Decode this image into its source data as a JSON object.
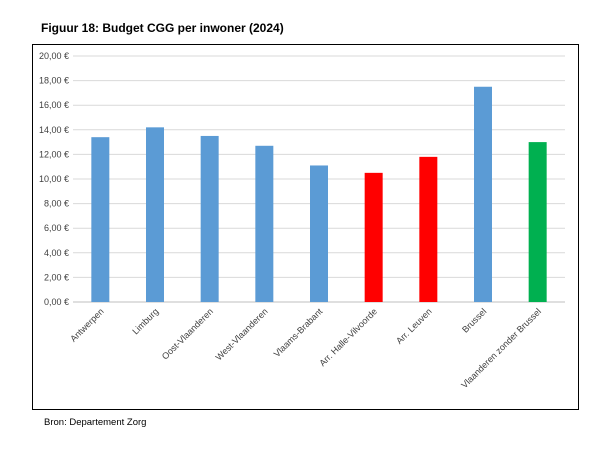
{
  "title": "Figuur 18: Budget CGG per inwoner (2024)",
  "source": "Bron: Departement Zorg",
  "chart_data": {
    "type": "bar",
    "title": "Figuur 18: Budget CGG per inwoner (2024)",
    "xlabel": "",
    "ylabel": "",
    "ylim": [
      0,
      20
    ],
    "ytick_step": 2,
    "yticks": [
      "0,00 €",
      "2,00 €",
      "4,00 €",
      "6,00 €",
      "8,00 €",
      "10,00 €",
      "12,00 €",
      "14,00 €",
      "16,00 €",
      "18,00 €",
      "20,00 €"
    ],
    "grid": true,
    "categories": [
      "Antwerpen",
      "Limburg",
      "Oost-Vlaanderen",
      "West-Vlaanderen",
      "Vlaams-Brabant",
      "Arr. Halle-Vilvoorde",
      "Arr. Leuven",
      "Brussel",
      "Vlaanderen zonder Brussel"
    ],
    "values": [
      13.4,
      14.2,
      13.5,
      12.7,
      11.1,
      10.5,
      11.8,
      17.5,
      13.0
    ],
    "colors": [
      "#5b9bd5",
      "#5b9bd5",
      "#5b9bd5",
      "#5b9bd5",
      "#5b9bd5",
      "#ff0000",
      "#ff0000",
      "#5b9bd5",
      "#00b050"
    ]
  }
}
